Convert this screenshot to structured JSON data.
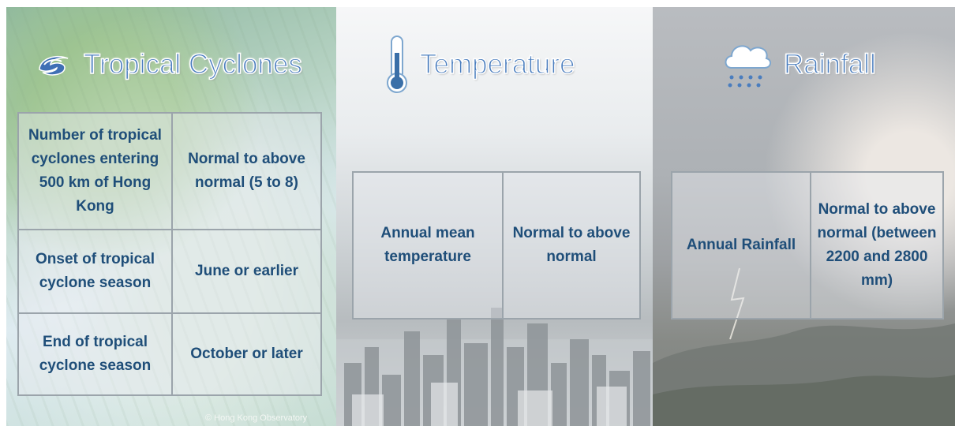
{
  "panels": {
    "cyclones": {
      "title": "Tropical Cyclones",
      "icon": "cyclone-icon",
      "rows": [
        {
          "label": "Number of tropical cyclones entering 500 km of Hong Kong",
          "value": "Normal to above normal (5 to 8)"
        },
        {
          "label": "Onset of tropical cyclone season",
          "value": "June or earlier"
        },
        {
          "label": "End of tropical cyclone season",
          "value": "October or later"
        }
      ],
      "copyright": "© Hong Kong Observatory"
    },
    "temperature": {
      "title": "Temperature",
      "icon": "thermometer-icon",
      "label": "Annual mean temperature",
      "value": "Normal to above normal"
    },
    "rainfall": {
      "title": "Rainfall",
      "icon": "rain-cloud-icon",
      "label": "Annual Rainfall",
      "value": "Normal to above normal (between 2200 and 2800 mm)"
    }
  },
  "colors": {
    "title": "#4a7dbe",
    "cell_text": "#1f4e79",
    "cell_border": "#9ba4ab"
  }
}
